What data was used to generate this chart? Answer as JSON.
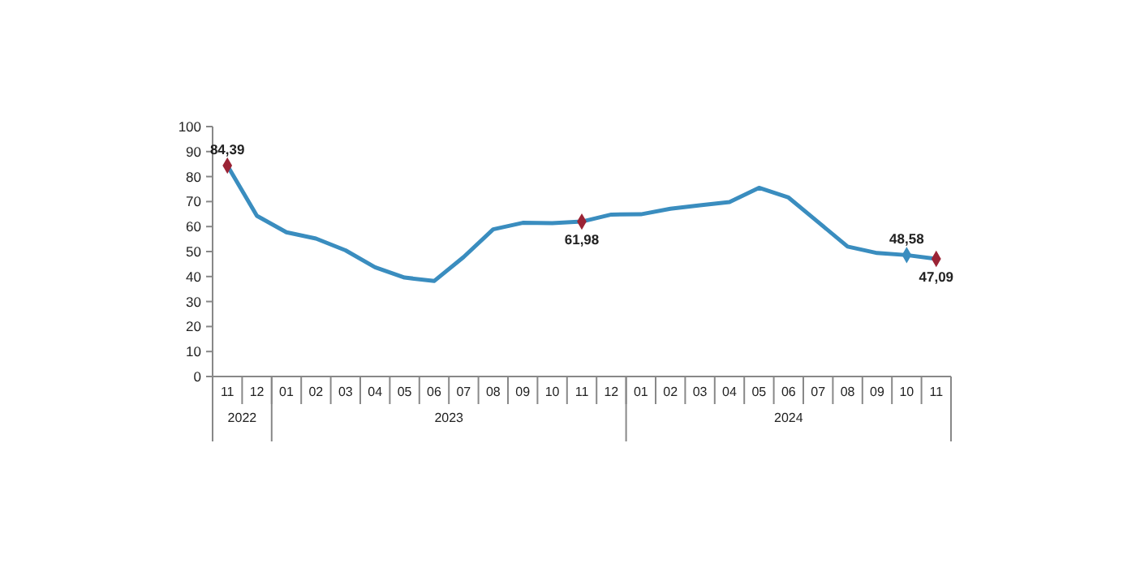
{
  "chart_data": {
    "type": "line",
    "categories": [
      "11",
      "12",
      "01",
      "02",
      "03",
      "04",
      "05",
      "06",
      "07",
      "08",
      "09",
      "10",
      "11",
      "12",
      "01",
      "02",
      "03",
      "04",
      "05",
      "06",
      "07",
      "08",
      "09",
      "10",
      "11"
    ],
    "annotations": [
      "2022",
      "2023",
      "2024"
    ],
    "series": [
      {
        "color": "#3a8dbf",
        "values": [
          84.39,
          64.3,
          57.7,
          55.2,
          50.5,
          43.7,
          39.6,
          38.2,
          47.8,
          58.9,
          61.5,
          61.4,
          61.98,
          64.8,
          64.9,
          67.1,
          68.5,
          69.8,
          75.5,
          71.6,
          61.8,
          52.0,
          49.4,
          48.58,
          47.09
        ]
      },
      {
        "type": "scatter",
        "marker": "diamond",
        "values": [
          84.39,
          null,
          null,
          null,
          null,
          null,
          null,
          null,
          null,
          null,
          null,
          null,
          61.98,
          null,
          null,
          null,
          null,
          null,
          null,
          null,
          null,
          null,
          null,
          48.58,
          47.09
        ],
        "value_labels": [
          "84,39",
          null,
          null,
          null,
          null,
          null,
          null,
          null,
          null,
          null,
          null,
          null,
          "61,98",
          null,
          null,
          null,
          null,
          null,
          null,
          null,
          null,
          null,
          null,
          "48,58",
          "47,09"
        ],
        "colors": [
          "#9b2335",
          null,
          null,
          null,
          null,
          null,
          null,
          null,
          null,
          null,
          null,
          null,
          "#9b2335",
          null,
          null,
          null,
          null,
          null,
          null,
          null,
          null,
          null,
          null,
          "#3a8dbf",
          "#9b2335"
        ]
      }
    ],
    "ylim": [
      0,
      100
    ],
    "yticks": [
      0,
      10,
      20,
      30,
      40,
      50,
      60,
      70,
      80,
      90,
      100
    ],
    "line_style": "solid"
  }
}
